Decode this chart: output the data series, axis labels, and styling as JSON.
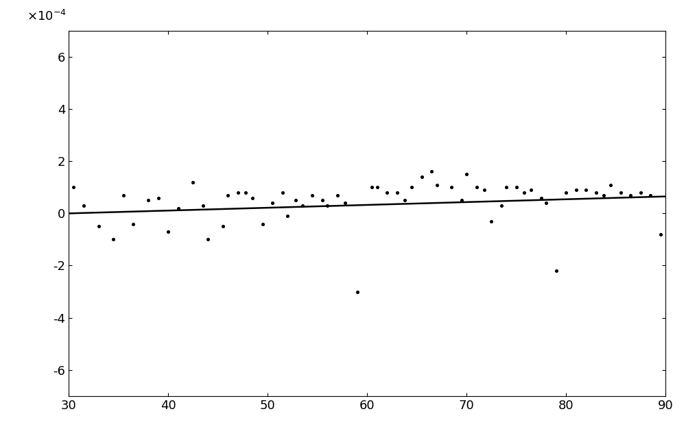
{
  "xlim": [
    30,
    90
  ],
  "ylim": [
    -0.0007,
    0.0007
  ],
  "xticks": [
    30,
    40,
    50,
    60,
    70,
    80,
    90
  ],
  "yticks": [
    -0.0006,
    -0.0004,
    -0.0002,
    0,
    0.0002,
    0.0004,
    0.0006
  ],
  "scatter_x": [
    30.5,
    31.5,
    33.0,
    34.5,
    35.5,
    36.5,
    38.0,
    39.0,
    40.0,
    41.0,
    42.5,
    43.5,
    44.0,
    45.5,
    46.0,
    47.0,
    47.8,
    48.5,
    49.5,
    50.5,
    51.5,
    52.0,
    52.8,
    53.5,
    54.5,
    55.5,
    56.0,
    57.0,
    57.8,
    59.0,
    60.5,
    61.0,
    62.0,
    63.0,
    63.8,
    64.5,
    65.5,
    66.5,
    67.0,
    68.5,
    69.5,
    70.0,
    71.0,
    71.8,
    72.5,
    73.5,
    74.0,
    75.0,
    75.8,
    76.5,
    77.5,
    78.0,
    79.0,
    80.0,
    81.0,
    82.0,
    83.0,
    83.8,
    84.5,
    85.5,
    86.5,
    87.5,
    88.5,
    89.5
  ],
  "scatter_y": [
    0.0001,
    3e-05,
    -5e-05,
    -0.0001,
    7e-05,
    -4e-05,
    5e-05,
    6e-05,
    -7e-05,
    2e-05,
    0.00012,
    3e-05,
    -0.0001,
    -5e-05,
    7e-05,
    8e-05,
    8e-05,
    6e-05,
    -4e-05,
    4e-05,
    8e-05,
    -1e-05,
    5e-05,
    3e-05,
    7e-05,
    5e-05,
    3e-05,
    7e-05,
    4e-05,
    -0.0003,
    0.0001,
    0.0001,
    8e-05,
    8e-05,
    5e-05,
    0.0001,
    0.00014,
    0.00016,
    0.00011,
    0.0001,
    5e-05,
    0.00015,
    0.0001,
    9e-05,
    -3e-05,
    3e-05,
    0.0001,
    0.0001,
    8e-05,
    9e-05,
    6e-05,
    4e-05,
    -0.00022,
    8e-05,
    9e-05,
    9e-05,
    8e-05,
    7e-05,
    0.00011,
    8e-05,
    7e-05,
    8e-05,
    7e-05,
    -8e-05
  ],
  "line_x": [
    30,
    90
  ],
  "line_y_at_30": 0.0,
  "line_y_at_90": 6.5e-05,
  "dot_color": "#000000",
  "line_color": "#000000",
  "background_color": "#ffffff",
  "dot_size": 7,
  "line_width": 1.8,
  "fig_width": 10.0,
  "fig_height": 6.42,
  "dpi": 100
}
